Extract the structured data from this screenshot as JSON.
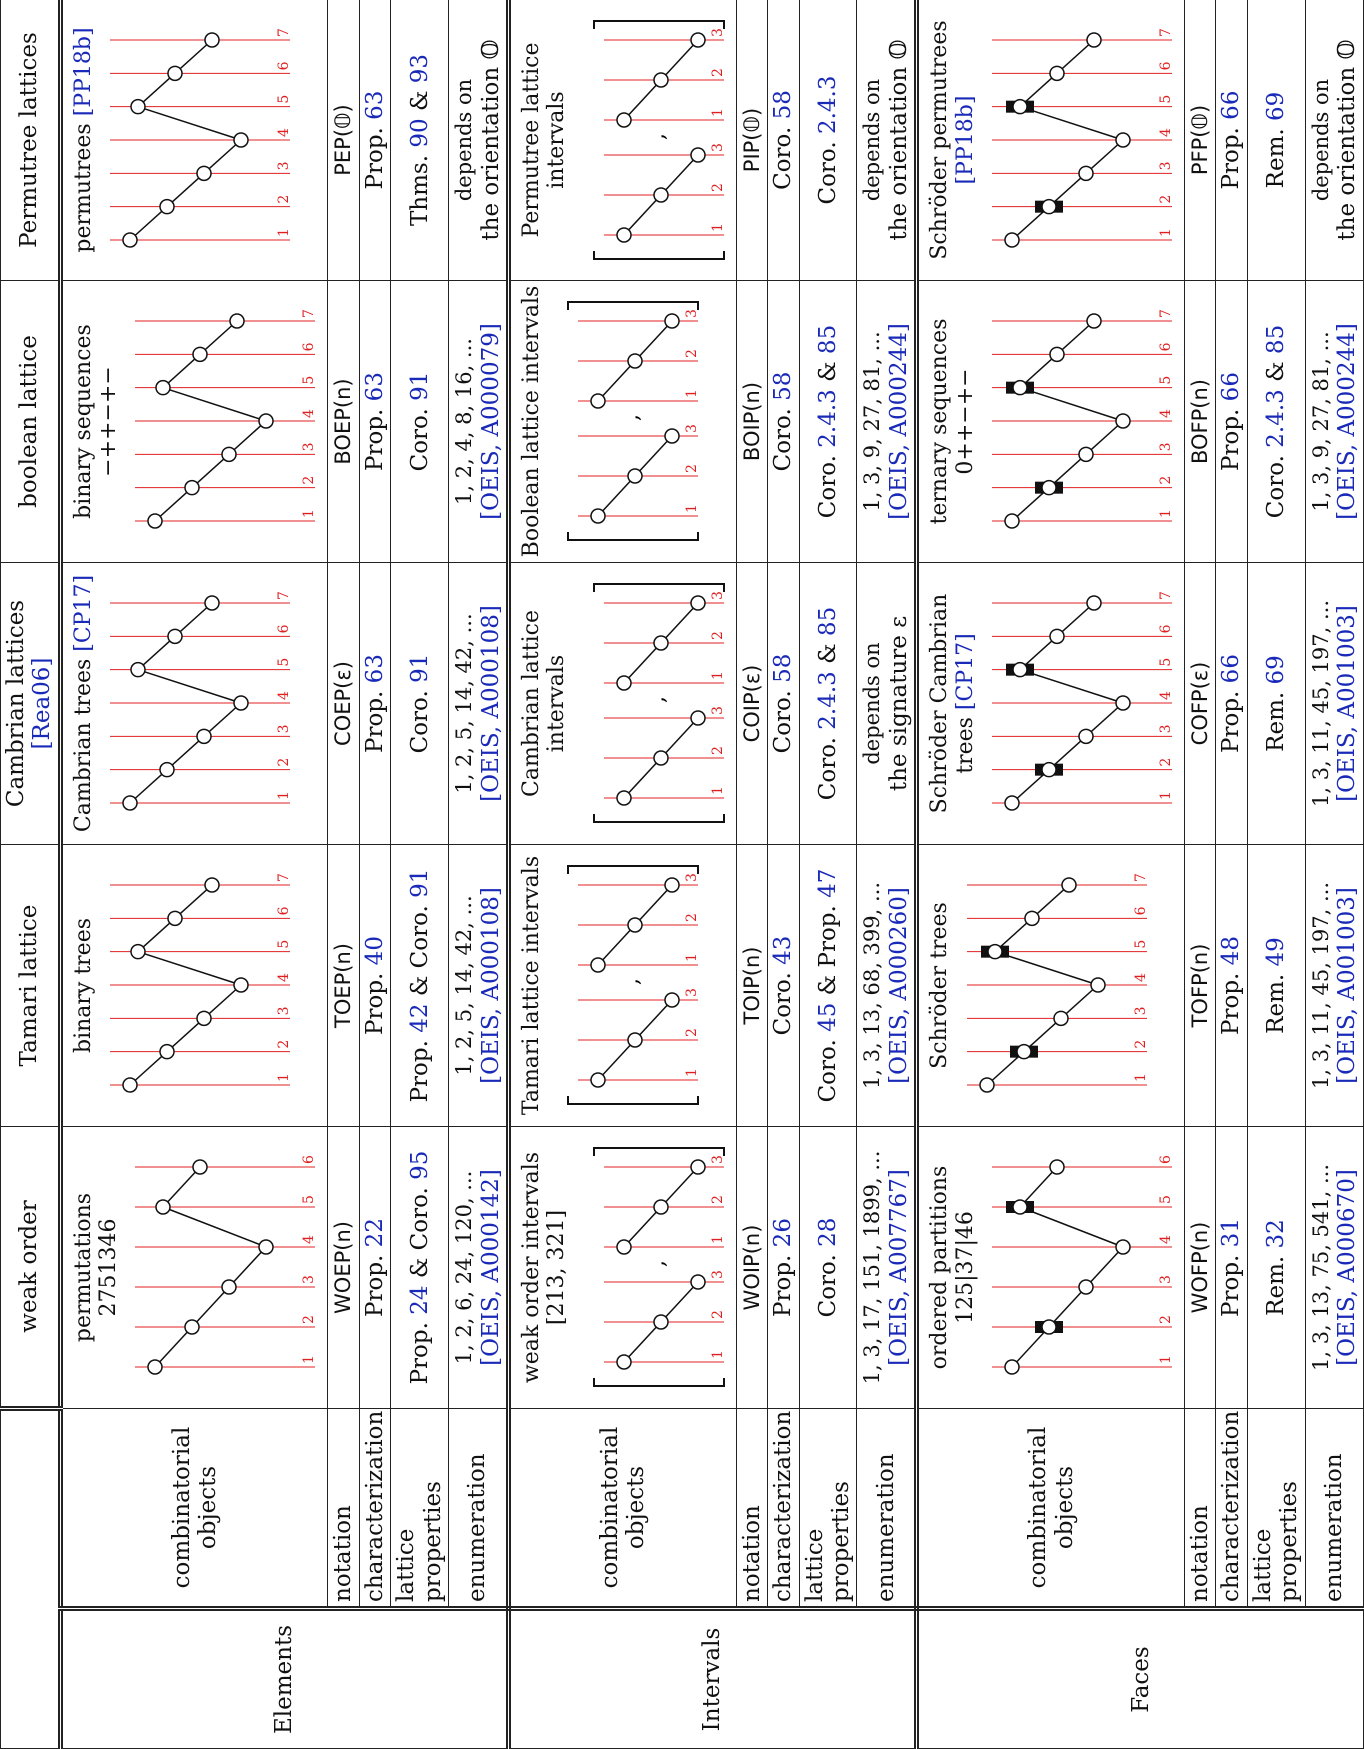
{
  "header": {
    "weak": "weak order",
    "tamari": "Tamari lattice",
    "cambrian": "Cambrian lattices",
    "cambrian_ref": "[Rea06]",
    "boolean": "boolean lattice",
    "permutree": "Permutree lattices"
  },
  "rows": {
    "elements": "Elements",
    "intervals": "Intervals",
    "faces": "Faces"
  },
  "labels": {
    "comb": "combinatorial objects",
    "notation": "notation",
    "characterization": "characterization",
    "lattice": "lattice properties",
    "enumeration": "enumeration"
  },
  "elements": {
    "obj": {
      "weak": "permutations",
      "weak2": "2751346",
      "tamari": "binary trees",
      "cambrian": "Cambrian trees",
      "cambrian_ref": "[CP17]",
      "boolean": "binary sequences",
      "boolean2": "−++−+−",
      "permutree": "permutrees",
      "permutree_ref": "[PP18b]"
    },
    "notation": {
      "weak": "WOEP(n)",
      "tamari": "TOEP(n)",
      "cambrian": "COEP(ε)",
      "boolean": "BOEP(n)",
      "permutree": "PEP(𝕆)"
    },
    "char": {
      "weak": [
        "Prop. ",
        "22"
      ],
      "tamari": [
        "Prop. ",
        "40"
      ],
      "cambrian": [
        "Prop. ",
        "63"
      ],
      "boolean": [
        "Prop. ",
        "63"
      ],
      "permutree": [
        "Prop. ",
        "63"
      ]
    },
    "lattice": {
      "weak": [
        "Prop. ",
        "24",
        " & Coro. ",
        "95"
      ],
      "tamari": [
        "Prop. ",
        "42",
        " & Coro. ",
        "91"
      ],
      "cambrian": [
        "Coro. ",
        "91",
        "",
        ""
      ],
      "boolean": [
        "Coro. ",
        "91",
        "",
        ""
      ],
      "permutree": [
        "Thms. ",
        "90",
        " & ",
        "93"
      ]
    },
    "enum": {
      "weak": [
        "1, 2, 6, 24, 120, ...",
        "[OEIS, A000142]"
      ],
      "tamari": [
        "1, 2, 5, 14, 42, ...",
        "[OEIS, A000108]"
      ],
      "cambrian": [
        "1, 2, 5, 14, 42, ...",
        "[OEIS, A000108]"
      ],
      "boolean": [
        "1, 2, 4, 8, 16, ...",
        "[OEIS, A000079]"
      ],
      "permutree": [
        "depends on",
        "the orientation 𝕆"
      ]
    }
  },
  "intervals": {
    "obj": {
      "weak": "weak order intervals",
      "weak2": "[213, 321]",
      "tamari": "Tamari lattice intervals",
      "cambrian": "Cambrian lattice intervals",
      "boolean": "Boolean lattice intervals",
      "permutree": "Permutree lattice intervals"
    },
    "notation": {
      "weak": "WOIP(n)",
      "tamari": "TOIP(n)",
      "cambrian": "COIP(ε)",
      "boolean": "BOIP(n)",
      "permutree": "PIP(𝕆)"
    },
    "char": {
      "weak": [
        "Prop. ",
        "26"
      ],
      "tamari": [
        "Coro. ",
        "43"
      ],
      "cambrian": [
        "Coro. ",
        "58"
      ],
      "boolean": [
        "Coro. ",
        "58"
      ],
      "permutree": [
        "Coro. ",
        "58"
      ]
    },
    "lattice": {
      "weak": [
        "Coro. ",
        "28",
        "",
        ""
      ],
      "tamari": [
        "Coro. ",
        "45",
        " & Prop. ",
        "47"
      ],
      "cambrian": [
        "Coro. ",
        "2.4.3",
        " & ",
        "85"
      ],
      "boolean": [
        "Coro. ",
        "2.4.3",
        " & ",
        "85"
      ],
      "permutree": [
        "Coro. ",
        "2.4.3",
        "",
        ""
      ]
    },
    "enum": {
      "weak": [
        "1, 3, 17, 151, 1899, ...",
        "[OEIS, A007767]"
      ],
      "tamari": [
        "1, 3, 13, 68, 399, ...",
        "[OEIS, A000260]"
      ],
      "cambrian": [
        "depends on",
        "the signature ε"
      ],
      "boolean": [
        "1, 3, 9, 27, 81, ...",
        "[OEIS, A000244]"
      ],
      "permutree": [
        "depends on",
        "the orientation 𝕆"
      ]
    }
  },
  "faces": {
    "obj": {
      "weak": "ordered partitions",
      "weak2": "125|37|46",
      "tamari": "Schröder trees",
      "cambrian": "Schröder Cambrian trees",
      "cambrian_ref": "[CP17]",
      "boolean": "ternary sequences",
      "boolean2": "0++−+−",
      "permutree": "Schröder permutrees",
      "permutree_ref": "[PP18b]"
    },
    "notation": {
      "weak": "WOFP(n)",
      "tamari": "TOFP(n)",
      "cambrian": "COFP(ε)",
      "boolean": "BOFP(n)",
      "permutree": "PFP(𝕆)"
    },
    "char": {
      "weak": [
        "Prop. ",
        "31"
      ],
      "tamari": [
        "Prop. ",
        "48"
      ],
      "cambrian": [
        "Prop. ",
        "66"
      ],
      "boolean": [
        "Prop. ",
        "66"
      ],
      "permutree": [
        "Prop. ",
        "66"
      ]
    },
    "lattice": {
      "weak": [
        "Rem. ",
        "32",
        "",
        ""
      ],
      "tamari": [
        "Rem. ",
        "49",
        "",
        ""
      ],
      "cambrian": [
        "Rem. ",
        "69",
        "",
        ""
      ],
      "boolean": [
        "Coro. ",
        "2.4.3",
        " & ",
        "85"
      ],
      "permutree": [
        "Rem. ",
        "69",
        "",
        ""
      ]
    },
    "enum": {
      "weak": [
        "1, 3, 13, 75, 541, ...",
        "[OEIS, A000670]"
      ],
      "tamari": [
        "1, 3, 11, 45, 197, ...",
        "[OEIS, A001003]"
      ],
      "cambrian": [
        "1, 3, 11, 45, 197, ...",
        "[OEIS, A001003]"
      ],
      "boolean": [
        "1, 3, 9, 27, 81, ...",
        "[OEIS, A000244]"
      ],
      "permutree": [
        "depends on",
        "the orientation 𝕆"
      ]
    }
  },
  "colors": {
    "link": "#1a2ab8",
    "label": "#e02020"
  }
}
